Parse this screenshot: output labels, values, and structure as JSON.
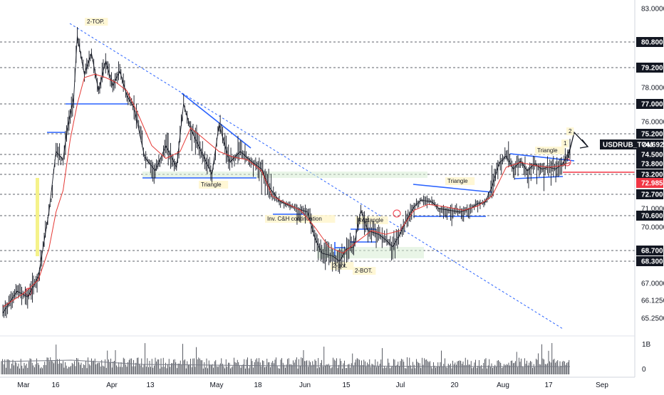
{
  "chart_data": {
    "type": "line",
    "symbol": "USDRUB_TOM",
    "last_price": "74.6925",
    "marked_price": "72.9850",
    "ylim": [
      64.9,
      83.3
    ],
    "price_ticks": [
      "83.0000",
      "80.8000",
      "79.2000",
      "78.0000",
      "77.0000",
      "76.0000",
      "75.2000",
      "74.5000",
      "73.8000",
      "73.2000",
      "72.7000",
      "71.0000",
      "70.6000",
      "70.0000",
      "68.7000",
      "68.3000",
      "67.0000",
      "66.1250",
      "65.2500"
    ],
    "highlighted_ticks": [
      "80.8000",
      "79.2000",
      "77.0000",
      "75.2000",
      "74.5000",
      "73.8000",
      "73.2000",
      "72.7000",
      "70.6000",
      "68.7000",
      "68.3000"
    ],
    "time_ticks": [
      "Mar",
      "16",
      "Apr",
      "13",
      "May",
      "18",
      "Jun",
      "15",
      "Jul",
      "20",
      "Aug",
      "17",
      "Sep"
    ],
    "volume_ticks": [
      "1B",
      "0"
    ],
    "horizontal_levels": [
      80.8,
      79.2,
      77.0,
      75.2,
      74.5,
      73.8,
      73.2,
      72.7,
      70.6,
      68.7,
      68.3
    ],
    "annotations": [
      "2-TOP.",
      "Triangle",
      "Inv. C&H continuation",
      "Rectangle",
      "2-bot.",
      "2-BOT.",
      "Triangle",
      "Triangle",
      "1",
      "2"
    ],
    "price_series": [
      {
        "x": 0,
        "y": 65.5
      },
      {
        "x": 4,
        "y": 66.6
      },
      {
        "x": 7,
        "y": 66.3
      },
      {
        "x": 10,
        "y": 67.4
      },
      {
        "x": 13,
        "y": 70.8
      },
      {
        "x": 15,
        "y": 74.6
      },
      {
        "x": 17,
        "y": 74.1
      },
      {
        "x": 18,
        "y": 75.3
      },
      {
        "x": 20,
        "y": 77.4
      },
      {
        "x": 21,
        "y": 81.2
      },
      {
        "x": 23,
        "y": 78.8
      },
      {
        "x": 25,
        "y": 80.1
      },
      {
        "x": 27,
        "y": 77.8
      },
      {
        "x": 29,
        "y": 79.6
      },
      {
        "x": 31,
        "y": 78.1
      },
      {
        "x": 33,
        "y": 79.0
      },
      {
        "x": 35,
        "y": 77.5
      },
      {
        "x": 37,
        "y": 76.8
      },
      {
        "x": 40,
        "y": 74.3
      },
      {
        "x": 43,
        "y": 73.4
      },
      {
        "x": 46,
        "y": 74.8
      },
      {
        "x": 49,
        "y": 73.6
      },
      {
        "x": 51,
        "y": 77.0
      },
      {
        "x": 53,
        "y": 75.5
      },
      {
        "x": 56,
        "y": 74.6
      },
      {
        "x": 59,
        "y": 73.2
      },
      {
        "x": 61,
        "y": 75.8
      },
      {
        "x": 64,
        "y": 73.9
      },
      {
        "x": 67,
        "y": 74.6
      },
      {
        "x": 70,
        "y": 74.0
      },
      {
        "x": 73,
        "y": 73.5
      },
      {
        "x": 75,
        "y": 72.9
      },
      {
        "x": 78,
        "y": 71.9
      },
      {
        "x": 80,
        "y": 71.5
      },
      {
        "x": 83,
        "y": 71.0
      },
      {
        "x": 86,
        "y": 70.8
      },
      {
        "x": 88,
        "y": 69.4
      },
      {
        "x": 90,
        "y": 68.6
      },
      {
        "x": 93,
        "y": 68.5
      },
      {
        "x": 95,
        "y": 68.3
      },
      {
        "x": 97,
        "y": 68.8
      },
      {
        "x": 99,
        "y": 68.9
      },
      {
        "x": 101,
        "y": 70.9
      },
      {
        "x": 103,
        "y": 69.8
      },
      {
        "x": 106,
        "y": 69.6
      },
      {
        "x": 108,
        "y": 69.3
      },
      {
        "x": 110,
        "y": 68.9
      },
      {
        "x": 112,
        "y": 69.6
      },
      {
        "x": 114,
        "y": 70.4
      },
      {
        "x": 116,
        "y": 71.2
      },
      {
        "x": 118,
        "y": 72.0
      },
      {
        "x": 121,
        "y": 71.8
      },
      {
        "x": 123,
        "y": 71.0
      },
      {
        "x": 126,
        "y": 70.9
      },
      {
        "x": 129,
        "y": 70.8
      },
      {
        "x": 132,
        "y": 71.0
      },
      {
        "x": 134,
        "y": 71.6
      },
      {
        "x": 136,
        "y": 71.7
      },
      {
        "x": 138,
        "y": 72.9
      },
      {
        "x": 140,
        "y": 73.8
      },
      {
        "x": 142,
        "y": 74.4
      },
      {
        "x": 144,
        "y": 73.5
      },
      {
        "x": 146,
        "y": 74.0
      },
      {
        "x": 148,
        "y": 73.4
      },
      {
        "x": 150,
        "y": 73.8
      },
      {
        "x": 152,
        "y": 73.5
      },
      {
        "x": 154,
        "y": 73.6
      },
      {
        "x": 156,
        "y": 73.5
      },
      {
        "x": 158,
        "y": 73.8
      },
      {
        "x": 160,
        "y": 74.69
      }
    ],
    "moving_average": [
      {
        "x": 0,
        "y": 65.8
      },
      {
        "x": 6,
        "y": 66.5
      },
      {
        "x": 10,
        "y": 67.2
      },
      {
        "x": 13,
        "y": 68.8
      },
      {
        "x": 15,
        "y": 70.8
      },
      {
        "x": 17,
        "y": 72.8
      },
      {
        "x": 19,
        "y": 75.0
      },
      {
        "x": 21,
        "y": 77.0
      },
      {
        "x": 23,
        "y": 78.6
      },
      {
        "x": 26,
        "y": 78.8
      },
      {
        "x": 29,
        "y": 78.6
      },
      {
        "x": 32,
        "y": 78.3
      },
      {
        "x": 35,
        "y": 77.8
      },
      {
        "x": 38,
        "y": 76.5
      },
      {
        "x": 42,
        "y": 74.8
      },
      {
        "x": 46,
        "y": 74.2
      },
      {
        "x": 50,
        "y": 74.6
      },
      {
        "x": 53,
        "y": 75.6
      },
      {
        "x": 57,
        "y": 75.0
      },
      {
        "x": 61,
        "y": 74.6
      },
      {
        "x": 65,
        "y": 74.3
      },
      {
        "x": 69,
        "y": 74.1
      },
      {
        "x": 73,
        "y": 73.4
      },
      {
        "x": 76,
        "y": 72.5
      },
      {
        "x": 80,
        "y": 71.6
      },
      {
        "x": 84,
        "y": 70.9
      },
      {
        "x": 88,
        "y": 70.0
      },
      {
        "x": 92,
        "y": 68.9
      },
      {
        "x": 96,
        "y": 68.6
      },
      {
        "x": 100,
        "y": 69.2
      },
      {
        "x": 104,
        "y": 69.8
      },
      {
        "x": 108,
        "y": 69.6
      },
      {
        "x": 112,
        "y": 69.8
      },
      {
        "x": 116,
        "y": 70.9
      },
      {
        "x": 120,
        "y": 71.5
      },
      {
        "x": 125,
        "y": 71.2
      },
      {
        "x": 130,
        "y": 70.9
      },
      {
        "x": 134,
        "y": 71.3
      },
      {
        "x": 138,
        "y": 72.5
      },
      {
        "x": 142,
        "y": 73.6
      },
      {
        "x": 146,
        "y": 73.9
      },
      {
        "x": 150,
        "y": 73.7
      },
      {
        "x": 154,
        "y": 73.6
      },
      {
        "x": 158,
        "y": 73.7
      },
      {
        "x": 160,
        "y": 73.9
      }
    ]
  }
}
